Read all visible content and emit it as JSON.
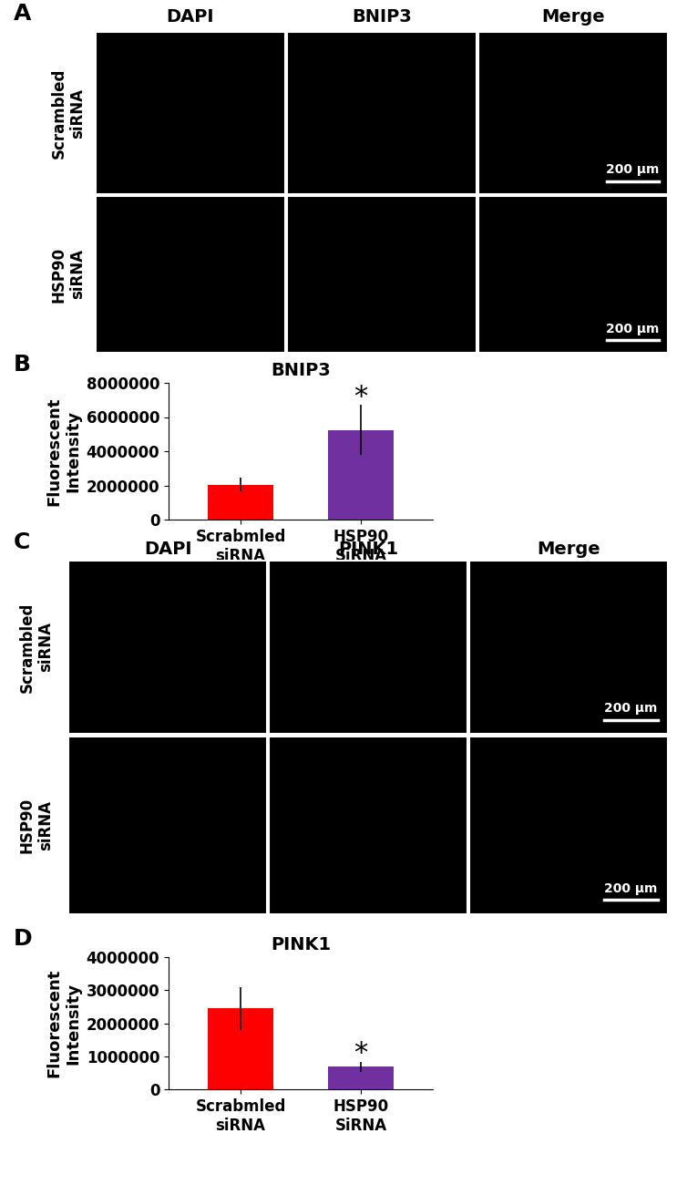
{
  "panels": [
    {
      "panel": "A",
      "type": "image_grid",
      "columns": [
        "DAPI",
        "BNIP3",
        "Merge"
      ],
      "rows": [
        "Scrambled\nsiRNA",
        "HSP90\nsiRNA"
      ],
      "scale_bar": "200 µm"
    },
    {
      "panel": "C",
      "type": "image_grid",
      "columns": [
        "DAPI",
        "PINK1",
        "Merge"
      ],
      "rows": [
        "Scrambled\nsiRNA",
        "HSP90\nsiRNA"
      ],
      "scale_bar": "200 µm"
    }
  ],
  "chart_data": [
    {
      "panel": "B",
      "type": "bar",
      "title": "BNIP3",
      "y_label": "Fluorescent\nIntensity",
      "categories": [
        "Scrabmled\nsiRNA",
        "HSP90\nSiRNA"
      ],
      "values": [
        2050000,
        5250000
      ],
      "errors": [
        400000,
        1450000
      ],
      "colors": [
        "#ff0000",
        "#7030a0"
      ],
      "ylim": [
        0,
        8000000
      ],
      "yticks": [
        0,
        2000000,
        4000000,
        6000000,
        8000000
      ],
      "annotations": [
        {
          "category": "HSP90\nSiRNA",
          "text": "*"
        }
      ]
    },
    {
      "panel": "D",
      "type": "bar",
      "title": "PINK1",
      "y_label": "Fluorescent\nIntensity",
      "categories": [
        "Scrabmled\nsiRNA",
        "HSP90\nSiRNA"
      ],
      "values": [
        2450000,
        680000
      ],
      "errors": [
        650000,
        150000
      ],
      "colors": [
        "#ff0000",
        "#7030a0"
      ],
      "ylim": [
        0,
        4000000
      ],
      "yticks": [
        0,
        1000000,
        2000000,
        3000000,
        4000000
      ],
      "annotations": [
        {
          "category": "HSP90\nSiRNA",
          "text": "*"
        }
      ]
    }
  ]
}
